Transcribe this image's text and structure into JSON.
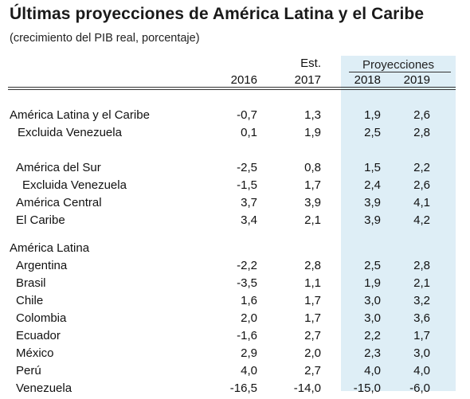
{
  "title": "Últimas proyecciones de América Latina y el Caribe",
  "subtitle": "(crecimiento del PIB real, porcentaje)",
  "header": {
    "projections": "Proyecciones",
    "est": "Est.",
    "y2016": "2016",
    "y2017": "2017",
    "y2018": "2018",
    "y2019": "2019"
  },
  "rows": [
    {
      "name": "América Latina y el Caribe",
      "v2016": "-0,7",
      "v2017": "1,3",
      "v2018": "1,9",
      "v2019": "2,6"
    },
    {
      "name": "Excluida Venezuela",
      "v2016": "0,1",
      "v2017": "1,9",
      "v2018": "2,5",
      "v2019": "2,8"
    },
    {
      "name": "América del Sur",
      "v2016": "-2,5",
      "v2017": "0,8",
      "v2018": "1,5",
      "v2019": "2,2"
    },
    {
      "name": "Excluida Venezuela",
      "v2016": "-1,5",
      "v2017": "1,7",
      "v2018": "2,4",
      "v2019": "2,6"
    },
    {
      "name": "América Central",
      "v2016": "3,7",
      "v2017": "3,9",
      "v2018": "3,9",
      "v2019": "4,1"
    },
    {
      "name": "El Caribe",
      "v2016": "3,4",
      "v2017": "2,1",
      "v2018": "3,9",
      "v2019": "4,2"
    },
    {
      "name": "América Latina",
      "v2016": "",
      "v2017": "",
      "v2018": "",
      "v2019": ""
    },
    {
      "name": "Argentina",
      "v2016": "-2,2",
      "v2017": "2,8",
      "v2018": "2,5",
      "v2019": "2,8"
    },
    {
      "name": "Brasil",
      "v2016": "-3,5",
      "v2017": "1,1",
      "v2018": "1,9",
      "v2019": "2,1"
    },
    {
      "name": "Chile",
      "v2016": "1,6",
      "v2017": "1,7",
      "v2018": "3,0",
      "v2019": "3,2"
    },
    {
      "name": "Colombia",
      "v2016": "2,0",
      "v2017": "1,7",
      "v2018": "3,0",
      "v2019": "3,6"
    },
    {
      "name": "Ecuador",
      "v2016": "-1,6",
      "v2017": "2,7",
      "v2018": "2,2",
      "v2019": "1,7"
    },
    {
      "name": "México",
      "v2016": "2,9",
      "v2017": "2,0",
      "v2018": "2,3",
      "v2019": "3,0"
    },
    {
      "name": "Perú",
      "v2016": "4,0",
      "v2017": "2,7",
      "v2018": "4,0",
      "v2019": "4,0"
    },
    {
      "name": "Venezuela",
      "v2016": "-16,5",
      "v2017": "-14,0",
      "v2018": "-15,0",
      "v2019": "-6,0"
    }
  ]
}
